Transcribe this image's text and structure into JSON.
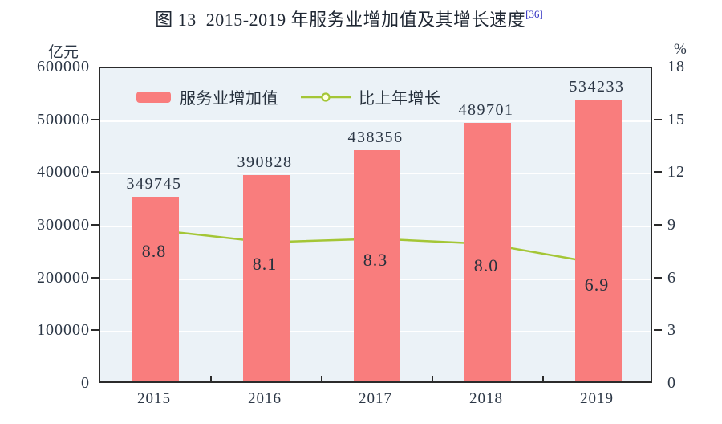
{
  "title": {
    "text": "图 13  2015-2019 年服务业增加值及其增长速度",
    "superscript": "[36]",
    "superscript_color": "#2a2ac0"
  },
  "chart_data": {
    "type": "bar",
    "combo": "bar+line dual-axis",
    "title": "图 13 2015-2019 年服务业增加值及其增长速度",
    "categories": [
      "2015",
      "2016",
      "2017",
      "2018",
      "2019"
    ],
    "series": [
      {
        "name": "服务业增加值",
        "type": "bar",
        "axis": "left",
        "color": "#f97d7d",
        "values": [
          349745,
          390828,
          438356,
          489701,
          534233
        ],
        "labels": [
          "349745",
          "390828",
          "438356",
          "489701",
          "534233"
        ]
      },
      {
        "name": "比上年增长",
        "type": "line",
        "axis": "right",
        "color": "#a4c636",
        "marker_fill": "#feffe3",
        "values": [
          8.8,
          8.1,
          8.3,
          8.0,
          6.9
        ],
        "labels": [
          "8.8",
          "8.1",
          "8.3",
          "8.0",
          "6.9"
        ]
      }
    ],
    "left_axis": {
      "unit": "亿元",
      "min": 0,
      "max": 600000,
      "step": 100000,
      "ticks": [
        "600000",
        "500000",
        "400000",
        "300000",
        "200000",
        "100000",
        "0"
      ]
    },
    "right_axis": {
      "unit": "%",
      "min": 0,
      "max": 18,
      "step": 3,
      "ticks": [
        "18",
        "15",
        "12",
        "9",
        "6",
        "3",
        "0"
      ]
    },
    "grid": "horizontal white lines",
    "legend_position": "top-left inside plot",
    "plot_bg": "#ebf2f7",
    "border_color": "#2b2b2b",
    "text_color": "#2c3746"
  }
}
